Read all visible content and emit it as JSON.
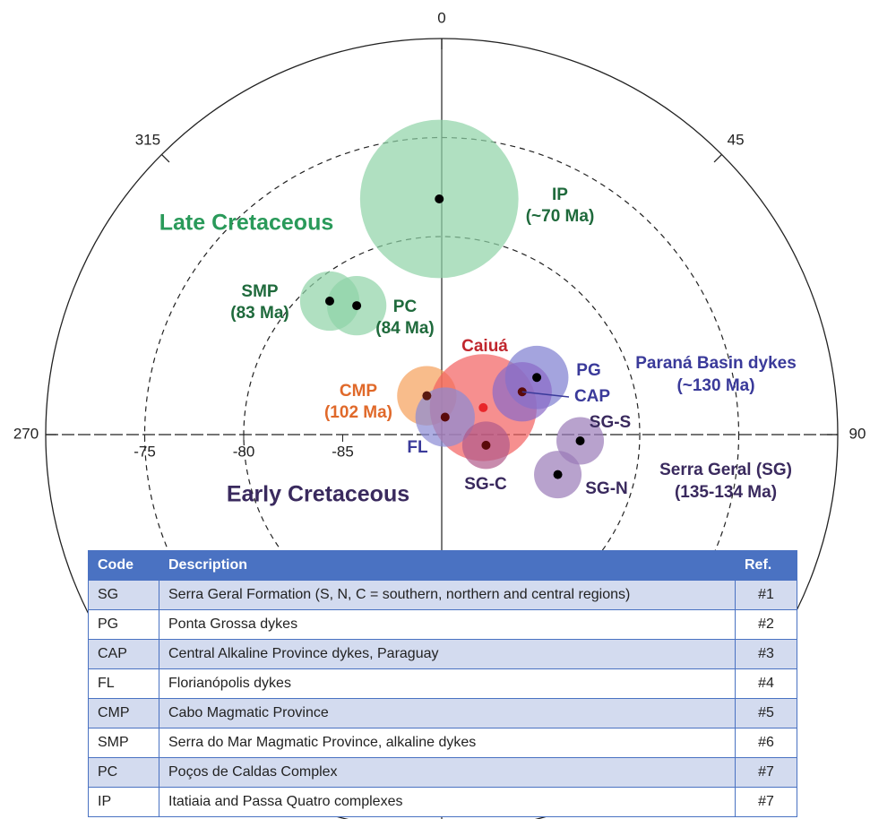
{
  "chart_data": {
    "type": "scatter",
    "projection": "polar",
    "rlim": [
      -90,
      -70
    ],
    "rticks": [
      -75,
      -80,
      -85
    ],
    "grid_r": [
      -80,
      -75
    ],
    "thetaticks": [
      0,
      45,
      90,
      270,
      315
    ],
    "poles": [
      {
        "label": "IP",
        "age": "(~70 Ma)",
        "lon": 359.4,
        "lat": -78.1,
        "a95": 4.0,
        "color": "#8fd3a6",
        "text_color": "#1f6a3c",
        "dot": "#000000"
      },
      {
        "label": "SMP",
        "age": "(83 Ma)",
        "lon": 320,
        "lat": -81.2,
        "a95": 1.5,
        "color": "#8fd3a6",
        "text_color": "#1f6a3c",
        "dot": "#000000"
      },
      {
        "label": "PC",
        "age": "(84 Ma)",
        "lon": 326.6,
        "lat": -82.2,
        "a95": 1.5,
        "color": "#8fd3a6",
        "text_color": "#1f6a3c",
        "dot": "#000000"
      },
      {
        "label": "CMP",
        "age": "(102 Ma)",
        "lon": 339,
        "lat": -87.9,
        "a95": 1.5,
        "color": "#f5a05a",
        "text_color": "#e0692a",
        "dot": "#5a1a10"
      },
      {
        "label": "Caiuá",
        "lon": 57,
        "lat": -87.5,
        "a95": 2.7,
        "color": "#f2605f",
        "text_color": "#c0262d",
        "dot": "#e8262a"
      },
      {
        "label": "FL",
        "lon": 11,
        "lat": -89.1,
        "a95": 1.5,
        "color": "#8a8ad4",
        "text_color": "#3a3a9a",
        "dot": "#5a0a0a"
      },
      {
        "label": "PG",
        "lon": 59,
        "lat": -84.4,
        "a95": 1.6,
        "color": "#7e7ed0",
        "text_color": "#3a3a9a",
        "dot": "#000000"
      },
      {
        "label": "CAP",
        "lon": 62,
        "lat": -85.4,
        "a95": 1.5,
        "color": "#8a6ac8",
        "text_color": "#3a3a9a",
        "dot": "#5a0a0a"
      },
      {
        "label": "SG-C",
        "lon": 103.5,
        "lat": -87.7,
        "a95": 1.2,
        "color": "#b05a8a",
        "text_color": "#3a2a5e",
        "dot": "#5a0a0a"
      },
      {
        "label": "SG-S",
        "lon": 92.6,
        "lat": -83.0,
        "a95": 1.2,
        "color": "#9a7ab8",
        "text_color": "#3a2a5e",
        "dot": "#000000"
      },
      {
        "label": "SG-N",
        "lon": 109,
        "lat": -83.8,
        "a95": 1.2,
        "color": "#9a7ab8",
        "text_color": "#3a2a5e",
        "dot": "#000000"
      }
    ],
    "annotations": [
      "Late Cretaceous",
      "Early Cretaceous",
      "Paraná Basin dykes",
      "(~130 Ma)",
      "Serra Geral (SG)",
      "(135-134 Ma)"
    ]
  },
  "table": {
    "header": [
      "Code",
      "Description",
      "Ref."
    ],
    "rows": [
      [
        "SG",
        "Serra Geral Formation (S, N, C = southern, northern and central regions)",
        "#1"
      ],
      [
        "PG",
        "Ponta Grossa dykes",
        "#2"
      ],
      [
        "CAP",
        "Central Alkaline Province dykes, Paraguay",
        "#3"
      ],
      [
        "FL",
        "Florianópolis dykes",
        "#4"
      ],
      [
        "CMP",
        "Cabo Magmatic Province",
        "#5"
      ],
      [
        "SMP",
        "Serra do Mar Magmatic Province, alkaline dykes",
        "#6"
      ],
      [
        "PC",
        "Poços de Caldas Complex",
        "#7"
      ],
      [
        "IP",
        "Itatiaia and Passa Quatro complexes",
        "#7"
      ]
    ]
  }
}
